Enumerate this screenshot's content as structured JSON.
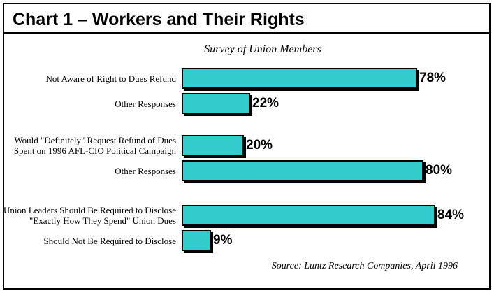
{
  "page": {
    "title": "Chart 1 – Workers and Their Rights",
    "subtitle": "Survey of Union Members",
    "source": "Source: Luntz Research Companies, April 1996"
  },
  "colors": {
    "bar_fill": "#33CCCC",
    "bar_border": "#000000",
    "bar_shadow": "#000000",
    "frame_border": "#000000",
    "background": "#FFFFFF",
    "text": "#000000"
  },
  "chart_data": {
    "type": "bar",
    "orientation": "horizontal",
    "title": "Survey of Union Members",
    "unit": "%",
    "xlim": [
      0,
      100
    ],
    "grid": false,
    "legend": false,
    "categories": [
      "Not Aware of Right to Dues Refund",
      "Other Responses",
      "Would \"Definitely\" Request Refund of Dues\nSpent on 1996 AFL-CIO Political Campaign",
      "Other Responses",
      "Union Leaders Should Be Required to Disclose\n\"Exactly How They Spend\" Union Dues",
      "Should Not Be Required to Disclose"
    ],
    "values": [
      78,
      22,
      20,
      80,
      84,
      9
    ],
    "value_labels": [
      "78%",
      "22%",
      "20%",
      "80%",
      "84%",
      "9%"
    ],
    "groups": [
      [
        0,
        1
      ],
      [
        2,
        3
      ],
      [
        4,
        5
      ]
    ],
    "source": "Source: Luntz Research Companies, April 1996"
  }
}
